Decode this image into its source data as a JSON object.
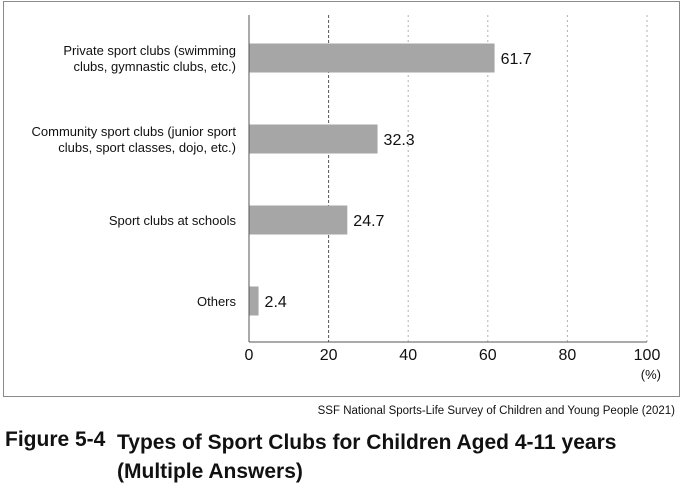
{
  "chart_data": {
    "type": "bar",
    "orientation": "horizontal",
    "categories": [
      [
        "Private sport clubs (swimming",
        "clubs, gymnastic clubs, etc.)"
      ],
      [
        "Community sport clubs (junior sport",
        "clubs, sport classes, dojo, etc.)"
      ],
      [
        "Sport clubs at schools"
      ],
      [
        "Others"
      ]
    ],
    "values": [
      61.7,
      32.3,
      24.7,
      2.4
    ],
    "value_labels": [
      "61.7",
      "32.3",
      "24.7",
      "2.4"
    ],
    "xlim": [
      0,
      100
    ],
    "xticks": [
      0,
      20,
      40,
      60,
      80,
      100
    ],
    "xtick_labels": [
      "0",
      "20",
      "40",
      "60",
      "80",
      "100"
    ],
    "xunit": "(%)",
    "grid": "vertical dashed",
    "bar_color": "#a6a6a6",
    "grid_color": "#b0b0b0",
    "axis_color": "#555555"
  },
  "source": "SSF National Sports-Life Survey of Children and Young People (2021)",
  "figure": {
    "number": "Figure 5-4",
    "title_line1": "Types of Sport Clubs for Children Aged 4-11 years",
    "title_line2": "(Multiple Answers)"
  }
}
